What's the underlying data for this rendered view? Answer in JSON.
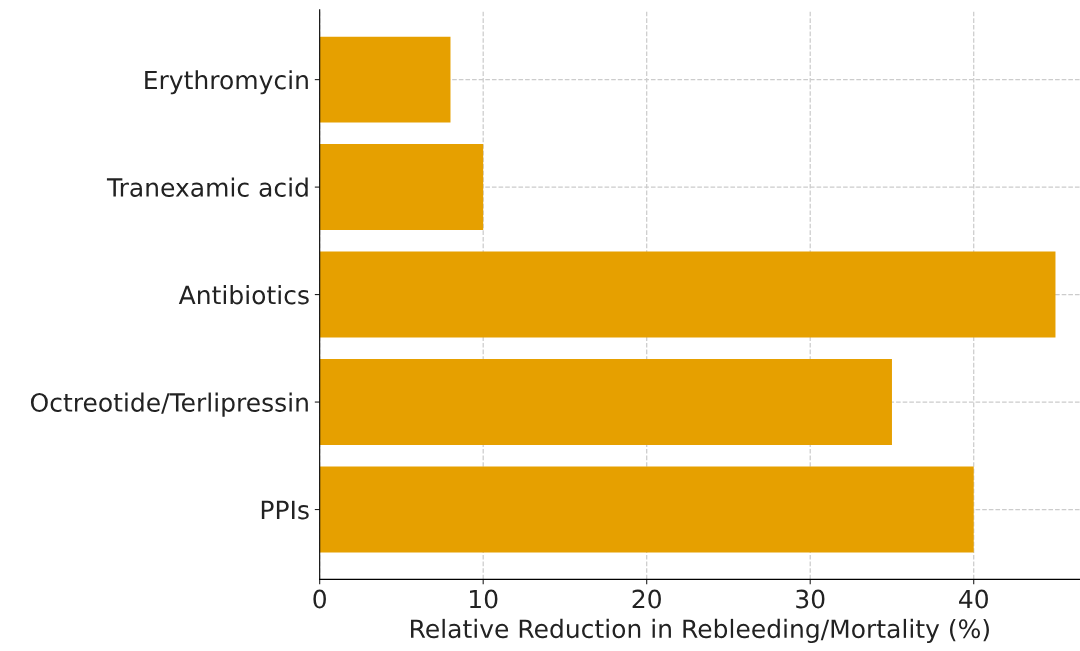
{
  "chart_data": {
    "type": "bar",
    "orientation": "horizontal",
    "categories": [
      "Erythromycin",
      "Tranexamic acid",
      "Antibiotics",
      "Octreotide/Terlipressin",
      "PPIs"
    ],
    "values": [
      8,
      10,
      45,
      35,
      40
    ],
    "color": "#e6a000",
    "xlabel": "Relative Reduction in Rebleeding/Mortality (%)",
    "xlim": [
      0,
      46.5
    ],
    "xticks": [
      0,
      10,
      20,
      30,
      40
    ],
    "grid": true,
    "line_style": "dashed"
  }
}
